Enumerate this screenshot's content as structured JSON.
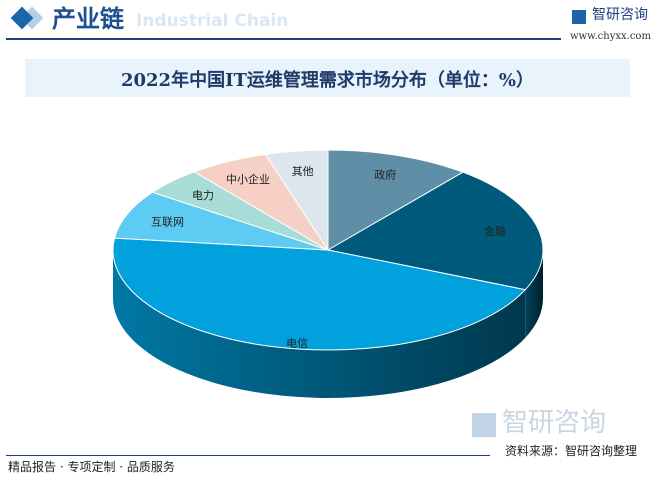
{
  "header": {
    "title": "产业链",
    "subtitle_en": "Industrial Chain",
    "brand": "智研咨询",
    "url": "www.chyxx.com"
  },
  "chart_data": {
    "type": "pie",
    "title": "2022年中国IT运维管理需求市场分布（单位：%）",
    "categories": [
      "政府",
      "金融",
      "电信",
      "互联网",
      "电力",
      "中小企业",
      "其他"
    ],
    "values": [
      10.8,
      20.7,
      45.4,
      7.9,
      4.5,
      6.0,
      4.7
    ],
    "colors": [
      "#5e8fa6",
      "#005a7c",
      "#00a1dd",
      "#5ecbf2",
      "#a7ddd6",
      "#f6d0c5",
      "#dde6ec"
    ],
    "style": "3d"
  },
  "watermark": "智研咨询",
  "source": "资料来源：智研咨询整理",
  "footer": "精品报告 · 专项定制 · 品质服务"
}
